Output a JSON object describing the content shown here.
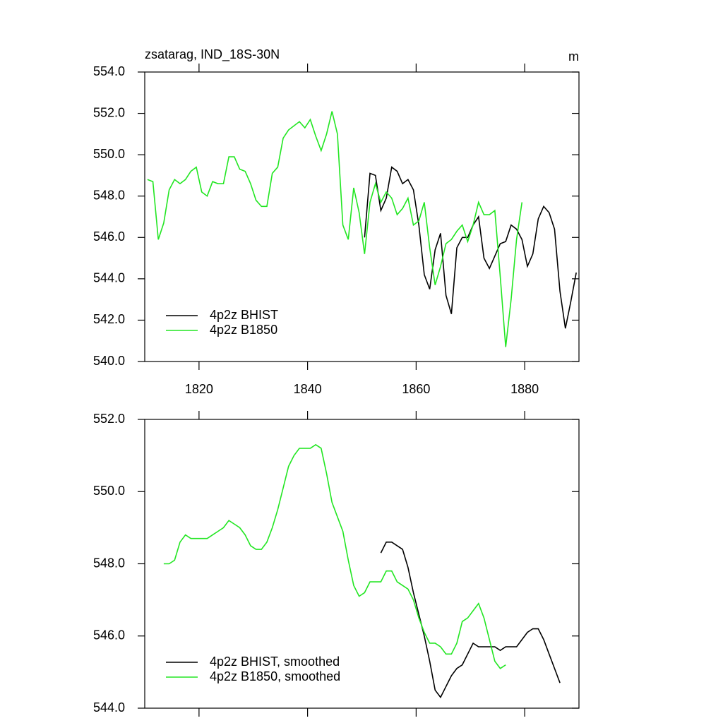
{
  "chart_data": [
    {
      "type": "line",
      "title": "zsatarag, IND_18S-30N",
      "units": "m",
      "xlim": [
        1810,
        1890
      ],
      "xticks": [
        1820,
        1840,
        1860,
        1880
      ],
      "show_xtick_labels": true,
      "ylim": [
        540,
        554
      ],
      "yticks": [
        {
          "value": 540,
          "label": "540.0"
        },
        {
          "value": 542,
          "label": "542.0"
        },
        {
          "value": 544,
          "label": "544.0"
        },
        {
          "value": 546,
          "label": "546.0"
        },
        {
          "value": 548,
          "label": "548.0"
        },
        {
          "value": 550,
          "label": "550.0"
        },
        {
          "value": 552,
          "label": "552.0"
        },
        {
          "value": 554,
          "label": "554.0"
        }
      ],
      "legend": "lower left",
      "series": [
        {
          "name": "4p2z BHIST",
          "color": "#000000",
          "x": [
            1850.5,
            1851.5,
            1852.5,
            1853.5,
            1854.5,
            1855.5,
            1856.5,
            1857.5,
            1858.5,
            1859.5,
            1860.5,
            1861.5,
            1862.5,
            1863.5,
            1864.5,
            1865.5,
            1866.5,
            1867.5,
            1868.5,
            1869.5,
            1870.5,
            1871.5,
            1872.5,
            1873.5,
            1874.5,
            1875.5,
            1876.5,
            1877.5,
            1878.5,
            1879.5,
            1880.5,
            1881.5,
            1882.5,
            1883.5,
            1884.5,
            1885.5,
            1886.5,
            1887.5,
            1888.5,
            1889.5
          ],
          "values": [
            546.0,
            549.1,
            549.0,
            547.3,
            547.9,
            549.4,
            549.2,
            548.6,
            548.8,
            548.3,
            546.6,
            544.2,
            543.5,
            545.4,
            546.2,
            543.2,
            542.3,
            545.5,
            546.0,
            546.0,
            546.6,
            547.0,
            545.0,
            544.5,
            545.1,
            545.7,
            545.8,
            546.6,
            546.4,
            545.9,
            544.6,
            545.2,
            546.9,
            547.5,
            547.2,
            546.4,
            543.4,
            541.6,
            542.9,
            544.3
          ]
        },
        {
          "name": "4p2z B1850",
          "color": "#22e622",
          "x": [
            1810.5,
            1811.5,
            1812.5,
            1813.5,
            1814.5,
            1815.5,
            1816.5,
            1817.5,
            1818.5,
            1819.5,
            1820.5,
            1821.5,
            1822.5,
            1823.5,
            1824.5,
            1825.5,
            1826.5,
            1827.5,
            1828.5,
            1829.5,
            1830.5,
            1831.5,
            1832.5,
            1833.5,
            1834.5,
            1835.5,
            1836.5,
            1837.5,
            1838.5,
            1839.5,
            1840.5,
            1841.5,
            1842.5,
            1843.5,
            1844.5,
            1845.5,
            1846.5,
            1847.5,
            1848.5,
            1849.5,
            1850.5,
            1851.5,
            1852.5,
            1853.5,
            1854.5,
            1855.5,
            1856.5,
            1857.5,
            1858.5,
            1859.5,
            1860.5,
            1861.5,
            1862.5,
            1863.5,
            1864.5,
            1865.5,
            1866.5,
            1867.5,
            1868.5,
            1869.5,
            1870.5,
            1871.5,
            1872.5,
            1873.5,
            1874.5,
            1875.5,
            1876.5,
            1877.5,
            1878.5,
            1879.5
          ],
          "values": [
            548.8,
            548.7,
            545.9,
            546.7,
            548.3,
            548.8,
            548.6,
            548.8,
            549.2,
            549.4,
            548.2,
            548.0,
            548.7,
            548.6,
            548.6,
            549.9,
            549.9,
            549.3,
            549.2,
            548.6,
            547.8,
            547.5,
            547.5,
            549.1,
            549.4,
            550.8,
            551.2,
            551.4,
            551.6,
            551.3,
            551.7,
            550.9,
            550.2,
            551.0,
            552.1,
            551.0,
            546.6,
            545.9,
            548.4,
            547.2,
            545.2,
            547.7,
            548.6,
            547.7,
            548.2,
            547.9,
            547.1,
            547.4,
            547.9,
            546.6,
            546.8,
            547.7,
            545.5,
            543.7,
            544.6,
            545.7,
            545.9,
            546.3,
            546.6,
            545.8,
            546.6,
            547.7,
            547.1,
            547.1,
            547.3,
            544.1,
            540.7,
            543.0,
            545.9,
            547.7
          ]
        }
      ]
    },
    {
      "type": "line",
      "xlim": [
        1810,
        1890
      ],
      "xticks": [
        1820,
        1840,
        1860,
        1880
      ],
      "show_xtick_labels": false,
      "ylim": [
        544,
        552
      ],
      "yticks": [
        {
          "value": 544,
          "label": "544.0"
        },
        {
          "value": 546,
          "label": "546.0"
        },
        {
          "value": 548,
          "label": "548.0"
        },
        {
          "value": 550,
          "label": "550.0"
        },
        {
          "value": 552,
          "label": "552.0"
        }
      ],
      "legend": "lower left",
      "series": [
        {
          "name": "4p2z BHIST, smoothed",
          "color": "#000000",
          "x": [
            1853.5,
            1854.5,
            1855.5,
            1856.5,
            1857.5,
            1858.5,
            1859.5,
            1860.5,
            1861.5,
            1862.5,
            1863.5,
            1864.5,
            1865.5,
            1866.5,
            1867.5,
            1868.5,
            1869.5,
            1870.5,
            1871.5,
            1872.5,
            1873.5,
            1874.5,
            1875.5,
            1876.5,
            1877.5,
            1878.5,
            1879.5,
            1880.5,
            1881.5,
            1882.5,
            1883.5,
            1884.5,
            1885.5,
            1886.5
          ],
          "values": [
            548.3,
            548.6,
            548.6,
            548.5,
            548.4,
            547.9,
            547.2,
            546.6,
            546.0,
            545.3,
            544.5,
            544.3,
            544.6,
            544.9,
            545.1,
            545.2,
            545.5,
            545.8,
            545.7,
            545.7,
            545.7,
            545.7,
            545.6,
            545.7,
            545.7,
            545.7,
            545.9,
            546.1,
            546.2,
            546.2,
            545.9,
            545.5,
            545.1,
            544.7
          ]
        },
        {
          "name": "4p2z B1850, smoothed",
          "color": "#22e622",
          "x": [
            1813.5,
            1814.5,
            1815.5,
            1816.5,
            1817.5,
            1818.5,
            1819.5,
            1820.5,
            1821.5,
            1822.5,
            1823.5,
            1824.5,
            1825.5,
            1826.5,
            1827.5,
            1828.5,
            1829.5,
            1830.5,
            1831.5,
            1832.5,
            1833.5,
            1834.5,
            1835.5,
            1836.5,
            1837.5,
            1838.5,
            1839.5,
            1840.5,
            1841.5,
            1842.5,
            1843.5,
            1844.5,
            1845.5,
            1846.5,
            1847.5,
            1848.5,
            1849.5,
            1850.5,
            1851.5,
            1852.5,
            1853.5,
            1854.5,
            1855.5,
            1856.5,
            1857.5,
            1858.5,
            1859.5,
            1860.5,
            1861.5,
            1862.5,
            1863.5,
            1864.5,
            1865.5,
            1866.5,
            1867.5,
            1868.5,
            1869.5,
            1870.5,
            1871.5,
            1872.5,
            1873.5,
            1874.5,
            1875.5,
            1876.5
          ],
          "values": [
            548.0,
            548.0,
            548.1,
            548.6,
            548.8,
            548.7,
            548.7,
            548.7,
            548.7,
            548.8,
            548.9,
            549.0,
            549.2,
            549.1,
            549.0,
            548.8,
            548.5,
            548.4,
            548.4,
            548.6,
            549.0,
            549.5,
            550.1,
            550.7,
            551.0,
            551.2,
            551.2,
            551.2,
            551.3,
            551.2,
            550.5,
            549.7,
            549.3,
            548.9,
            548.1,
            547.4,
            547.1,
            547.2,
            547.5,
            547.5,
            547.5,
            547.8,
            547.8,
            547.5,
            547.4,
            547.3,
            547.0,
            546.5,
            546.1,
            545.8,
            545.8,
            545.7,
            545.5,
            545.5,
            545.8,
            546.4,
            546.5,
            546.7,
            546.9,
            546.5,
            545.9,
            545.3,
            545.1,
            545.2
          ]
        }
      ]
    }
  ]
}
